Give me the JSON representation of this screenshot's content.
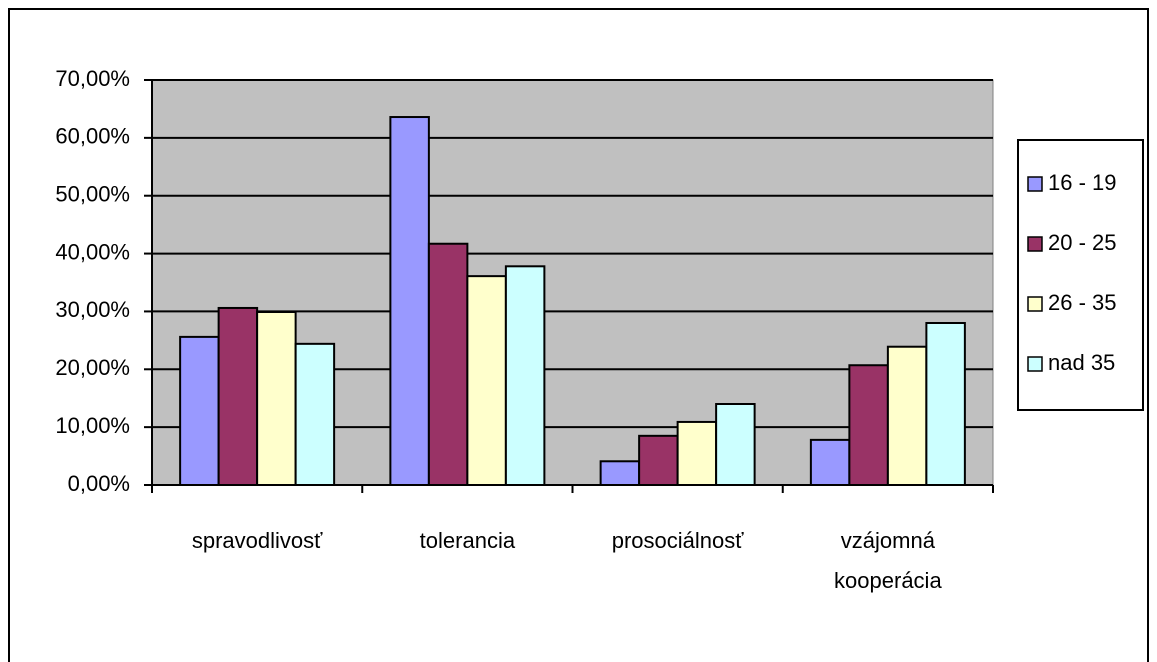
{
  "chart_data": {
    "type": "bar",
    "categories": [
      "spravodlivosť",
      "tolerancia",
      "prosociálnosť",
      "vzájomná kooperácia"
    ],
    "series": [
      {
        "name": "16 - 19",
        "color": "#9999ff",
        "values": [
          25.6,
          63.6,
          4.1,
          7.8
        ]
      },
      {
        "name": "20 - 25",
        "color": "#993366",
        "values": [
          30.6,
          41.7,
          8.5,
          20.7
        ]
      },
      {
        "name": "26 - 35",
        "color": "#ffffcc",
        "values": [
          29.9,
          36.1,
          10.9,
          23.9
        ]
      },
      {
        "name": "nad 35",
        "color": "#ccffff",
        "values": [
          24.4,
          37.8,
          14.0,
          28.0
        ]
      }
    ],
    "ylim": [
      0,
      70
    ],
    "yticks": [
      {
        "value": 0,
        "label": "0,00%"
      },
      {
        "value": 10,
        "label": "10,00%"
      },
      {
        "value": 20,
        "label": "20,00%"
      },
      {
        "value": 30,
        "label": "30,00%"
      },
      {
        "value": 40,
        "label": "40,00%"
      },
      {
        "value": 50,
        "label": "50,00%"
      },
      {
        "value": 60,
        "label": "60,00%"
      },
      {
        "value": 70,
        "label": "70,00%"
      }
    ],
    "grid": true,
    "legend": "right"
  }
}
